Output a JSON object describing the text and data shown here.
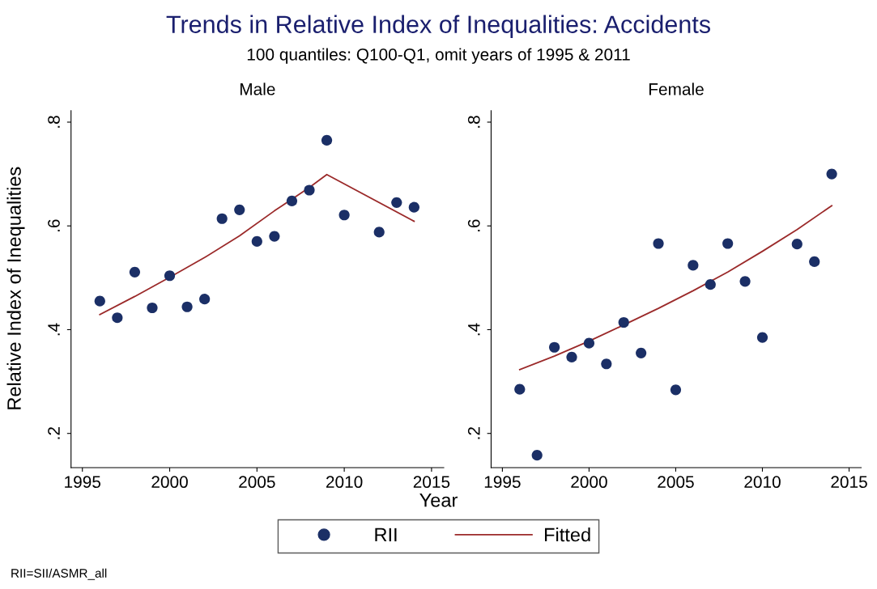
{
  "chart_data": [
    {
      "type": "scatter",
      "title": "Male",
      "ylabel": "Relative Index of Inequalities",
      "xlabel": "Year",
      "annotations": [
        "Trends in Relative Index of Inequalities: Accidents",
        "100 quantiles: Q100-Q1, omit years of 1995 & 2011",
        "RII=SII/ASMR_all"
      ],
      "x": [
        1996,
        1997,
        1998,
        1999,
        2000,
        2001,
        2002,
        2003,
        2004,
        2005,
        2006,
        2007,
        2008,
        2009,
        2010,
        2012,
        2013,
        2014
      ],
      "series": [
        {
          "name": "RII",
          "color": "#1b2f66",
          "marker": "circle",
          "values": [
            0.455,
            0.423,
            0.511,
            0.442,
            0.504,
            0.444,
            0.459,
            0.614,
            0.631,
            0.57,
            0.58,
            0.648,
            0.669,
            0.765,
            0.621,
            0.588,
            0.645,
            0.636
          ]
        },
        {
          "name": "Fitted",
          "type": "line",
          "color": "#9b2a2a",
          "line_style": "solid",
          "x": [
            1996,
            1998,
            2000,
            2002,
            2004,
            2006,
            2008,
            2009,
            2014
          ],
          "values": [
            0.429,
            0.464,
            0.501,
            0.539,
            0.581,
            0.629,
            0.674,
            0.699,
            0.609
          ]
        }
      ],
      "xlim": [
        1994.35,
        2015.7
      ],
      "xticks": [
        1995,
        2000,
        2005,
        2010,
        2015
      ],
      "ylim": [
        0.134,
        0.822
      ],
      "yticks": [
        {
          "value": 0.2,
          "label": ".2"
        },
        {
          "value": 0.4,
          "label": ".4"
        },
        {
          "value": 0.6,
          "label": ".6"
        },
        {
          "value": 0.8,
          "label": ".8"
        }
      ],
      "grid": false,
      "legend": "bottom"
    },
    {
      "type": "scatter",
      "title": "Female",
      "x": [
        1996,
        1997,
        1998,
        1999,
        2000,
        2001,
        2002,
        2003,
        2004,
        2005,
        2006,
        2007,
        2008,
        2009,
        2010,
        2012,
        2013,
        2014
      ],
      "series": [
        {
          "color": "#1b2f66",
          "marker": "circle",
          "values": [
            0.285,
            0.158,
            0.366,
            0.347,
            0.374,
            0.334,
            0.414,
            0.355,
            0.566,
            0.284,
            0.524,
            0.487,
            0.566,
            0.493,
            0.385,
            0.565,
            0.531,
            0.7
          ]
        },
        {
          "type": "line",
          "color": "#9b2a2a",
          "line_style": "solid",
          "x": [
            1996,
            1998,
            2000,
            2002,
            2004,
            2006,
            2008,
            2010,
            2012,
            2014
          ],
          "values": [
            0.323,
            0.349,
            0.378,
            0.409,
            0.441,
            0.475,
            0.511,
            0.551,
            0.593,
            0.639
          ]
        }
      ],
      "xlim": [
        1994.35,
        2015.7
      ],
      "xticks": [
        1995,
        2000,
        2005,
        2010,
        2015
      ],
      "ylim": [
        0.134,
        0.822
      ],
      "yticks": [
        {
          "value": 0.2,
          "label": ".2"
        },
        {
          "value": 0.4,
          "label": ".4"
        },
        {
          "value": 0.6,
          "label": ".6"
        },
        {
          "value": 0.8,
          "label": ".8"
        }
      ],
      "grid": false
    }
  ]
}
